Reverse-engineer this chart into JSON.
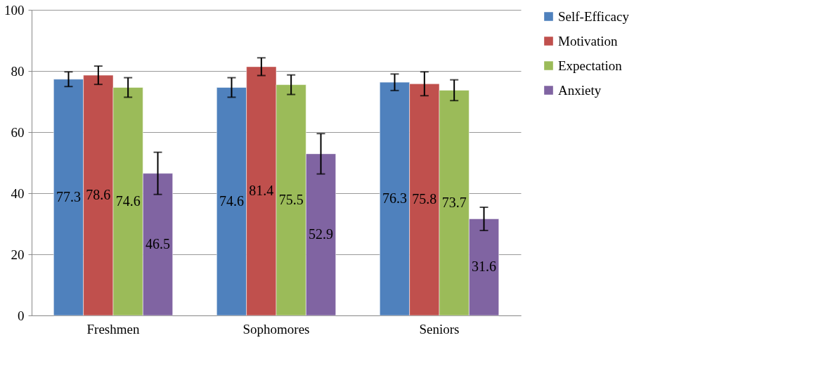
{
  "chart_data": {
    "type": "bar",
    "categories": [
      "Freshmen",
      "Sophomores",
      "Seniors"
    ],
    "series": [
      {
        "name": "Self-Efficacy",
        "color": "#4f81bd",
        "values": [
          77.3,
          74.6,
          76.3
        ],
        "errors": [
          2.4,
          3.2,
          2.7
        ]
      },
      {
        "name": "Motivation",
        "color": "#c0504d",
        "values": [
          78.6,
          81.4,
          75.8
        ],
        "errors": [
          3.0,
          2.9,
          3.9
        ]
      },
      {
        "name": "Expectation",
        "color": "#9bbb59",
        "values": [
          74.6,
          75.5,
          73.7
        ],
        "errors": [
          3.2,
          3.2,
          3.4
        ]
      },
      {
        "name": "Anxiety",
        "color": "#8064a2",
        "values": [
          46.5,
          52.9,
          31.6
        ],
        "errors": [
          6.9,
          6.6,
          3.8
        ]
      }
    ],
    "ylim": [
      0,
      100
    ],
    "yticks": [
      0,
      20,
      40,
      60,
      80,
      100
    ],
    "grid": "y",
    "legend": "right",
    "data_labels": true
  }
}
